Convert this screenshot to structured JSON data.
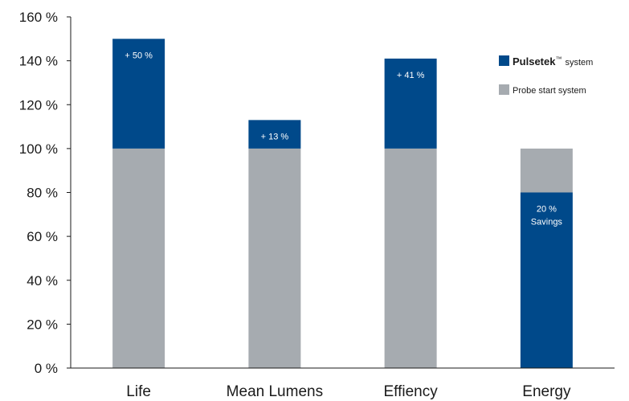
{
  "chart_data": {
    "type": "bar",
    "stacked": true,
    "categories": [
      "Life",
      "Mean Lumens",
      "Effiency",
      "Energy"
    ],
    "series": [
      {
        "name": "Probe start system",
        "color": "#a6abb0",
        "values": [
          100,
          100,
          100,
          20
        ]
      },
      {
        "name": "Pulsetek system",
        "color": "#00498a",
        "values": [
          50,
          13,
          41,
          80
        ]
      }
    ],
    "stack_order": [
      [
        "Probe start system",
        "Pulsetek system"
      ],
      [
        "Probe start system",
        "Pulsetek system"
      ],
      [
        "Probe start system",
        "Pulsetek system"
      ],
      [
        "Pulsetek system",
        "Probe start system"
      ]
    ],
    "data_labels": [
      {
        "category": "Life",
        "text": [
          "+ 50 %"
        ]
      },
      {
        "category": "Mean Lumens",
        "text": [
          "+ 13 %"
        ]
      },
      {
        "category": "Effiency",
        "text": [
          "+ 41 %"
        ]
      },
      {
        "category": "Energy",
        "text": [
          "20 %",
          "Savings"
        ]
      }
    ],
    "yticks": [
      "0 %",
      "20 %",
      "40 %",
      "60 %",
      "80 %",
      "100 %",
      "120 %",
      "140 %",
      "160 %"
    ],
    "ylim": [
      0,
      160
    ],
    "ytick_step": 20,
    "grid": false,
    "legend": {
      "position": "right",
      "entries": [
        {
          "brand": "Pulsetek",
          "trademark": "™",
          "text": "system",
          "color": "#00498a"
        },
        {
          "text": "Probe start system",
          "color": "#a6abb0"
        }
      ]
    }
  }
}
